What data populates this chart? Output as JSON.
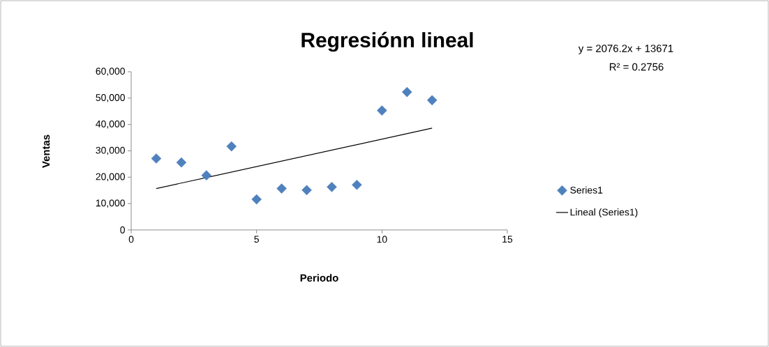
{
  "chart_data": {
    "type": "scatter",
    "title": "Regresiónn lineal",
    "xlabel": "Periodo",
    "ylabel": "Ventas",
    "x": [
      1,
      2,
      3,
      4,
      5,
      6,
      7,
      8,
      9,
      10,
      11,
      12
    ],
    "series": [
      {
        "name": "Series1",
        "marker": "diamond",
        "color": "#4f81bd",
        "values": [
          27100,
          25600,
          20700,
          31700,
          11600,
          15700,
          15100,
          16300,
          17100,
          45300,
          52300,
          49200
        ]
      },
      {
        "name": "Lineal (Series1)",
        "type": "line",
        "color": "#000000",
        "x": [
          1,
          12
        ],
        "values": [
          15700,
          38600
        ]
      }
    ],
    "annotations": [
      "y = 2076.2x + 13671",
      "R² = 0.2756"
    ],
    "xlim": [
      0,
      15
    ],
    "xticks": [
      0,
      5,
      10,
      15
    ],
    "ylim": [
      0,
      60000
    ],
    "yticks": [
      {
        "value": 0,
        "label": "0"
      },
      {
        "value": 10000,
        "label": "10,000"
      },
      {
        "value": 20000,
        "label": "20,000"
      },
      {
        "value": 30000,
        "label": "30,000"
      },
      {
        "value": 40000,
        "label": "40,000"
      },
      {
        "value": 50000,
        "label": "50,000"
      },
      {
        "value": 60000,
        "label": "60,000"
      }
    ],
    "grid": false,
    "legend": "right",
    "line_style": "solid"
  }
}
